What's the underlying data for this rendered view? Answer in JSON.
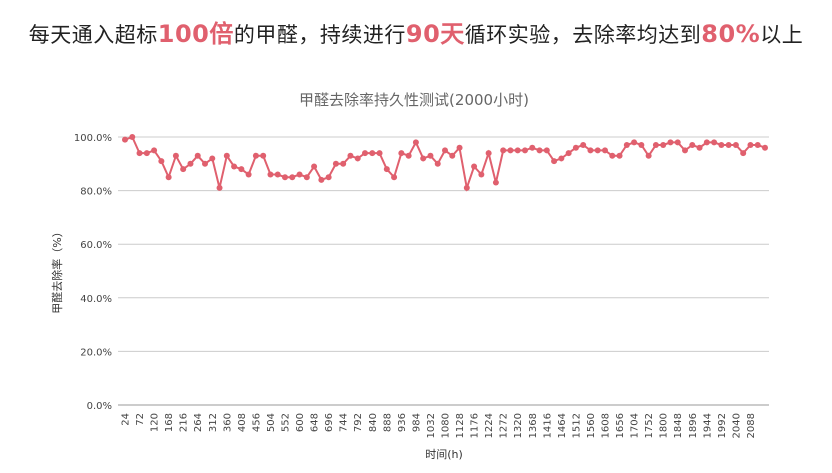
{
  "headline": {
    "p1": "每天通入超标",
    "h1": "100倍",
    "p2": "的甲醛，持续进行",
    "h2": "90天",
    "p3": "循环实验，去除率均达到",
    "h3": "80%",
    "p4": "以上"
  },
  "colors": {
    "line": "#e0606e",
    "highlight": "#e0606e",
    "grid": "#cccccc"
  },
  "chart_data": {
    "type": "line",
    "title": "甲醛去除率持久性测试(2000小时)",
    "xlabel": "时间(h)",
    "ylabel": "甲醛去除率（%）",
    "ylim": [
      0,
      100
    ],
    "yticks": [
      0,
      20,
      40,
      60,
      80,
      100
    ],
    "ytick_labels": [
      "0.0%",
      "20.0%",
      "40.0%",
      "60.0%",
      "80.0%",
      "100.0%"
    ],
    "x_start": 24,
    "x_step": 24,
    "xtick_labels": [
      "24",
      "72",
      "120",
      "168",
      "216",
      "264",
      "312",
      "360",
      "408",
      "456",
      "504",
      "552",
      "600",
      "648",
      "696",
      "744",
      "792",
      "840",
      "888",
      "936",
      "984",
      "1032",
      "1080",
      "1128",
      "1176",
      "1224",
      "1272",
      "1320",
      "1368",
      "1416",
      "1464",
      "1512",
      "1560",
      "1608",
      "1656",
      "1704",
      "1752",
      "1800",
      "1848",
      "1896",
      "1944",
      "1992",
      "2040",
      "2088"
    ],
    "grid": true,
    "series": [
      {
        "values": [
          99,
          100,
          94,
          94,
          95,
          91,
          85,
          93,
          88,
          90,
          93,
          90,
          92,
          81,
          93,
          89,
          88,
          86,
          93,
          93,
          86,
          86,
          85,
          85,
          86,
          85,
          89,
          84,
          85,
          90,
          90,
          93,
          92,
          94,
          94,
          94,
          88,
          85,
          94,
          93,
          98,
          92,
          93,
          90,
          95,
          93,
          96,
          81,
          89,
          86,
          94,
          83,
          95,
          95,
          95,
          95,
          96,
          95,
          95,
          91,
          92,
          94,
          96,
          97,
          95,
          95,
          95,
          93,
          93,
          97,
          98,
          97,
          93,
          97,
          97,
          98,
          98,
          95,
          97,
          96,
          98,
          98,
          97,
          97,
          97,
          94,
          97,
          97,
          96
        ]
      }
    ]
  }
}
